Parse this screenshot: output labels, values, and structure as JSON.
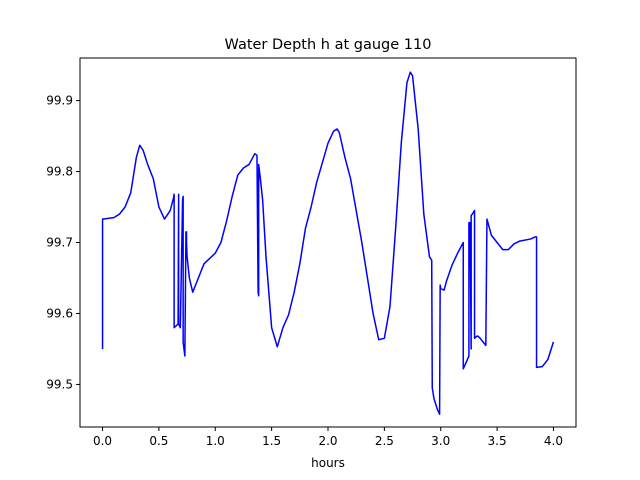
{
  "chart_data": {
    "type": "line",
    "title": "Water Depth h at gauge 110",
    "xlabel": "hours",
    "ylabel": "",
    "xlim": [
      -0.2,
      4.2
    ],
    "ylim": [
      99.44,
      99.96
    ],
    "xticks": [
      0.0,
      0.5,
      1.0,
      1.5,
      2.0,
      2.5,
      3.0,
      3.5,
      4.0
    ],
    "xtick_labels": [
      "0.0",
      "0.5",
      "1.0",
      "1.5",
      "2.0",
      "2.5",
      "3.0",
      "3.5",
      "4.0"
    ],
    "yticks": [
      99.5,
      99.6,
      99.7,
      99.8,
      99.9
    ],
    "ytick_labels": [
      "99.5",
      "99.6",
      "99.7",
      "99.8",
      "99.9"
    ],
    "grid": false,
    "legend": "none",
    "series": [
      {
        "color": "#0000ff",
        "x": [
          0.0,
          0.0,
          0.1,
          0.15,
          0.2,
          0.25,
          0.3,
          0.33,
          0.36,
          0.4,
          0.45,
          0.5,
          0.55,
          0.6,
          0.63,
          0.635,
          0.635,
          0.67,
          0.675,
          0.675,
          0.69,
          0.71,
          0.715,
          0.715,
          0.73,
          0.74,
          0.745,
          0.745,
          0.75,
          0.77,
          0.8,
          0.85,
          0.9,
          1.0,
          1.05,
          1.1,
          1.15,
          1.2,
          1.25,
          1.3,
          1.35,
          1.37,
          1.38,
          1.385,
          1.385,
          1.4,
          1.42,
          1.45,
          1.5,
          1.55,
          1.6,
          1.65,
          1.7,
          1.75,
          1.8,
          1.85,
          1.9,
          2.0,
          2.05,
          2.08,
          2.1,
          2.15,
          2.2,
          2.3,
          2.4,
          2.45,
          2.5,
          2.55,
          2.6,
          2.65,
          2.7,
          2.73,
          2.75,
          2.8,
          2.85,
          2.9,
          2.92,
          2.925,
          2.94,
          2.97,
          2.99,
          2.995,
          3.0,
          3.03,
          3.05,
          3.1,
          3.15,
          3.2,
          3.2,
          3.25,
          3.25,
          3.26,
          3.27,
          3.27,
          3.28,
          3.3,
          3.3,
          3.32,
          3.33,
          3.35,
          3.4,
          3.41,
          3.41,
          3.45,
          3.5,
          3.55,
          3.6,
          3.65,
          3.7,
          3.8,
          3.84,
          3.85,
          3.85,
          3.9,
          3.95,
          4.0
        ],
        "y": [
          99.55,
          99.733,
          99.735,
          99.74,
          99.75,
          99.77,
          99.82,
          99.837,
          99.83,
          99.81,
          99.79,
          99.75,
          99.733,
          99.745,
          99.763,
          99.768,
          99.58,
          99.585,
          99.768,
          99.585,
          99.58,
          99.76,
          99.765,
          99.56,
          99.54,
          99.715,
          99.715,
          99.7,
          99.68,
          99.65,
          99.63,
          99.65,
          99.67,
          99.685,
          99.7,
          99.73,
          99.765,
          99.795,
          99.805,
          99.81,
          99.825,
          99.823,
          99.63,
          99.625,
          99.81,
          99.79,
          99.76,
          99.68,
          99.58,
          99.553,
          99.58,
          99.598,
          99.63,
          99.67,
          99.72,
          99.75,
          99.785,
          99.84,
          99.857,
          99.86,
          99.855,
          99.82,
          99.79,
          99.7,
          99.6,
          99.563,
          99.565,
          99.61,
          99.72,
          99.84,
          99.925,
          99.94,
          99.935,
          99.86,
          99.74,
          99.68,
          99.675,
          99.495,
          99.48,
          99.465,
          99.458,
          99.64,
          99.635,
          99.633,
          99.645,
          99.668,
          99.685,
          99.7,
          99.522,
          99.54,
          99.728,
          99.728,
          99.55,
          99.738,
          99.74,
          99.745,
          99.565,
          99.568,
          99.568,
          99.565,
          99.555,
          99.733,
          99.733,
          99.71,
          99.7,
          99.69,
          99.69,
          99.698,
          99.702,
          99.705,
          99.708,
          99.708,
          99.524,
          99.525,
          99.535,
          99.56
        ]
      }
    ]
  }
}
